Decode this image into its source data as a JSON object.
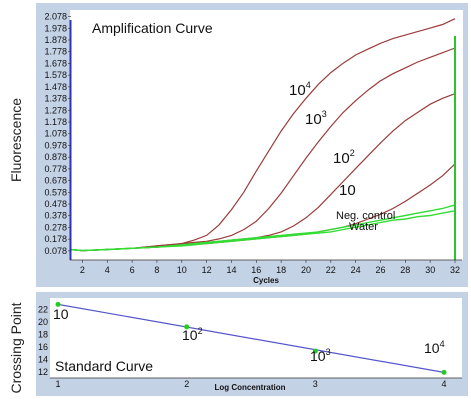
{
  "colors": {
    "panel_bg": "#c4d2e6",
    "plot_bg": "#ffffff",
    "sample_curve": "#9b3b3b",
    "control_curve": "#33dd33",
    "left_axis_line": "#3030c0",
    "end_line": "#2cc42c",
    "standard_line": "#5555cc",
    "standard_point": "#22cc22"
  },
  "chart_data": [
    {
      "type": "line",
      "title": "Amplification Curve",
      "xlabel": "Cycles",
      "ylabel": "Fluorescence",
      "xlim": [
        1,
        32
      ],
      "ylim": [
        0,
        2.1
      ],
      "grid": false,
      "x_ticks": [
        "2",
        "4",
        "6",
        "8",
        "10",
        "12",
        "14",
        "16",
        "18",
        "20",
        "22",
        "24",
        "26",
        "28",
        "30",
        "32"
      ],
      "y_ticks": [
        "0.078",
        "0.178",
        "0.278",
        "0.378",
        "0.478",
        "0.578",
        "0.678",
        "0.778",
        "0.878",
        "0.978",
        "1.078",
        "1.178",
        "1.278",
        "1.378",
        "1.478",
        "1.578",
        "1.678",
        "1.778",
        "1.878",
        "1.978",
        "2.078"
      ],
      "x": [
        1,
        2,
        4,
        6,
        8,
        10,
        11,
        12,
        13,
        14,
        15,
        16,
        17,
        18,
        19,
        20,
        21,
        22,
        23,
        24,
        25,
        26,
        27,
        28,
        29,
        30,
        31,
        32
      ],
      "series": [
        {
          "annotation": {
            "base": "10",
            "exp": "4"
          },
          "values": [
            0.09,
            0.08,
            0.09,
            0.1,
            0.12,
            0.14,
            0.17,
            0.21,
            0.3,
            0.43,
            0.58,
            0.76,
            0.93,
            1.1,
            1.25,
            1.38,
            1.5,
            1.6,
            1.68,
            1.75,
            1.8,
            1.85,
            1.89,
            1.92,
            1.95,
            1.98,
            2.01,
            2.06
          ]
        },
        {
          "annotation": {
            "base": "10",
            "exp": "3"
          },
          "values": [
            0.09,
            0.08,
            0.09,
            0.1,
            0.12,
            0.14,
            0.15,
            0.16,
            0.18,
            0.21,
            0.26,
            0.33,
            0.44,
            0.57,
            0.72,
            0.87,
            1.01,
            1.14,
            1.26,
            1.36,
            1.45,
            1.53,
            1.59,
            1.64,
            1.69,
            1.73,
            1.77,
            1.81
          ]
        },
        {
          "annotation": {
            "base": "10",
            "exp": "2"
          },
          "values": [
            0.09,
            0.08,
            0.09,
            0.1,
            0.11,
            0.13,
            0.14,
            0.15,
            0.16,
            0.17,
            0.18,
            0.19,
            0.21,
            0.24,
            0.29,
            0.36,
            0.45,
            0.56,
            0.67,
            0.78,
            0.89,
            1.0,
            1.1,
            1.19,
            1.26,
            1.33,
            1.38,
            1.42
          ]
        },
        {
          "annotation": {
            "base": "10",
            "exp": ""
          },
          "values": [
            0.09,
            0.08,
            0.09,
            0.1,
            0.11,
            0.13,
            0.14,
            0.14,
            0.15,
            0.16,
            0.17,
            0.18,
            0.19,
            0.2,
            0.21,
            0.22,
            0.24,
            0.26,
            0.28,
            0.31,
            0.35,
            0.39,
            0.44,
            0.5,
            0.57,
            0.64,
            0.72,
            0.82
          ]
        },
        {
          "annotation": {
            "base": "Neg. control",
            "exp": ""
          },
          "kind": "control",
          "values": [
            0.09,
            0.08,
            0.09,
            0.1,
            0.11,
            0.13,
            0.14,
            0.15,
            0.16,
            0.17,
            0.18,
            0.19,
            0.2,
            0.21,
            0.22,
            0.23,
            0.24,
            0.26,
            0.28,
            0.3,
            0.32,
            0.34,
            0.36,
            0.38,
            0.4,
            0.42,
            0.44,
            0.47
          ]
        },
        {
          "annotation": {
            "base": "Water",
            "exp": ""
          },
          "kind": "control",
          "values": [
            0.09,
            0.08,
            0.09,
            0.1,
            0.11,
            0.12,
            0.13,
            0.14,
            0.15,
            0.16,
            0.17,
            0.18,
            0.19,
            0.2,
            0.21,
            0.22,
            0.23,
            0.24,
            0.26,
            0.28,
            0.3,
            0.32,
            0.34,
            0.35,
            0.37,
            0.38,
            0.4,
            0.42
          ]
        }
      ]
    },
    {
      "type": "scatter",
      "title": "Standard Curve",
      "xlabel": "Log Concentration",
      "ylabel": "Crossing Point",
      "xlim": [
        1,
        4
      ],
      "ylim": [
        11,
        23.5
      ],
      "x_ticks": [
        "1",
        "2",
        "3",
        "4"
      ],
      "y_ticks": [
        "12",
        "14",
        "16",
        "18",
        "20",
        "22"
      ],
      "points": [
        {
          "x": 1,
          "y": 22.8,
          "label": {
            "base": "10",
            "exp": ""
          }
        },
        {
          "x": 2,
          "y": 19.2,
          "label": {
            "base": "10",
            "exp": "2"
          }
        },
        {
          "x": 3,
          "y": 15.3,
          "label": {
            "base": "10",
            "exp": "3"
          }
        },
        {
          "x": 4,
          "y": 11.9,
          "label": {
            "base": "10",
            "exp": "4"
          }
        }
      ],
      "fit_line": {
        "x": [
          1,
          4
        ],
        "y": [
          22.8,
          11.9
        ]
      }
    }
  ]
}
